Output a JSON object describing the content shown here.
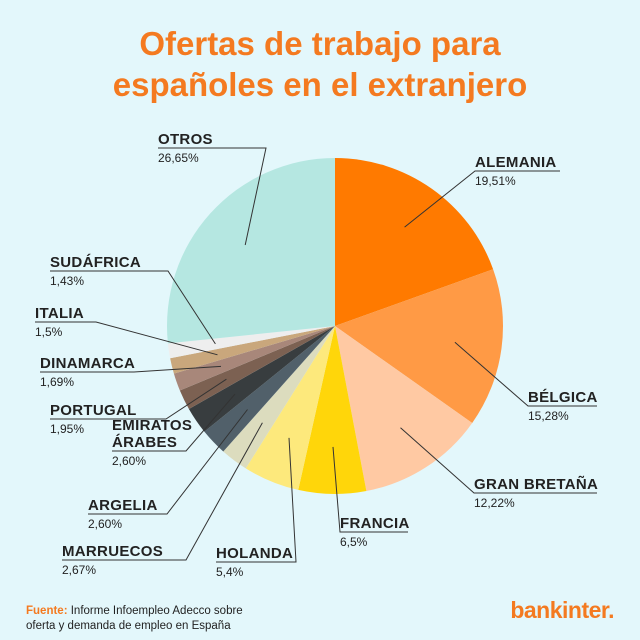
{
  "title_line1": "Ofertas de trabajo para",
  "title_line2": "españoles en el extranjero",
  "source_label": "Fuente:",
  "source_line1": "Informe Infoempleo Adecco sobre",
  "source_line2": "oferta y demanda de empleo en España",
  "logo": "bankinter.",
  "chart_data": {
    "type": "pie",
    "slices": [
      {
        "name": "ALEMANIA",
        "value": 19.51,
        "label": "19,51%",
        "color": "#ff7a00"
      },
      {
        "name": "BÉLGICA",
        "value": 15.28,
        "label": "15,28%",
        "color": "#ff9a45"
      },
      {
        "name": "GRAN BRETAÑA",
        "value": 12.22,
        "label": "12,22%",
        "color": "#ffc9a3"
      },
      {
        "name": "FRANCIA",
        "value": 6.5,
        "label": "6,5%",
        "color": "#ffd60a"
      },
      {
        "name": "HOLANDA",
        "value": 5.4,
        "label": "5,4%",
        "color": "#fde97c"
      },
      {
        "name": "MARRUECOS",
        "value": 2.67,
        "label": "2,67%",
        "color": "#dcdcbe"
      },
      {
        "name": "ARGELIA",
        "value": 2.6,
        "label": "2,60%",
        "color": "#51606a"
      },
      {
        "name": [
          "EMIRATOS",
          "ÁRABES"
        ],
        "value": 2.6,
        "label": "2,60%",
        "color": "#383d3f"
      },
      {
        "name": "PORTUGAL",
        "value": 1.95,
        "label": "1,95%",
        "color": "#7c6152"
      },
      {
        "name": "DINAMARCA",
        "value": 1.69,
        "label": "1,69%",
        "color": "#a8877a"
      },
      {
        "name": "ITALIA",
        "value": 1.5,
        "label": "1,5%",
        "color": "#c9a77c"
      },
      {
        "name": "SUDÁFRICA",
        "value": 1.43,
        "label": "1,43%",
        "color": "#eeeeee"
      },
      {
        "name": "OTROS",
        "value": 26.65,
        "label": "26,65%",
        "color": "#b5e7e1"
      }
    ]
  }
}
